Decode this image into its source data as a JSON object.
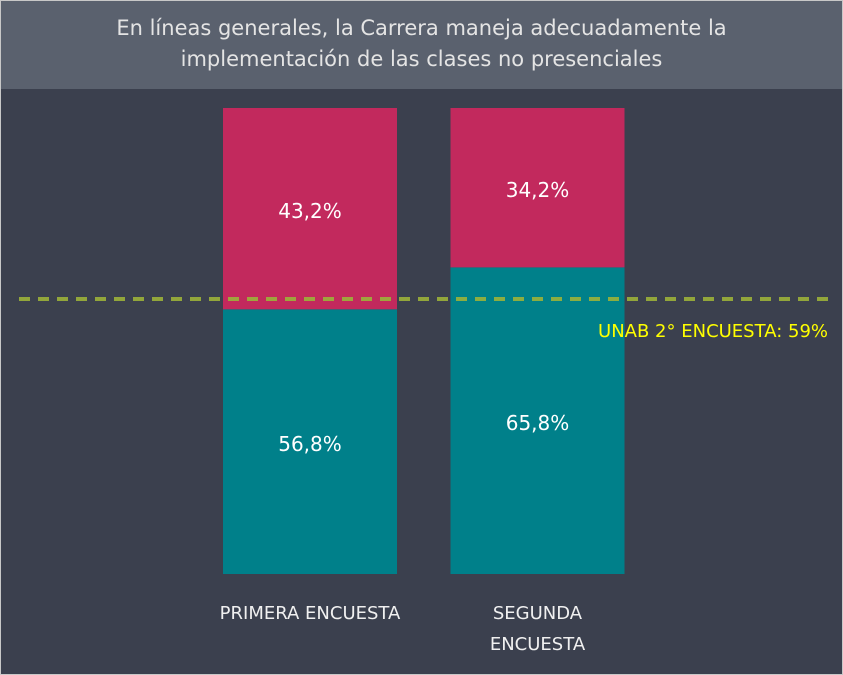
{
  "chart_data": {
    "type": "bar",
    "stacked": true,
    "title": "En líneas generales, la Carrera maneja adecuadamente la implementación de las clases no presenciales",
    "categories": [
      "PRIMERA ENCUESTA",
      "SEGUNDA ENCUESTA"
    ],
    "series": [
      {
        "color": "#00808a",
        "values": [
          56.8,
          65.8
        ],
        "value_labels": [
          "56,8%",
          "65,8%"
        ]
      },
      {
        "color": "#c2295d",
        "values": [
          43.2,
          34.2
        ],
        "value_labels": [
          "43,2%",
          "34,2%"
        ]
      }
    ],
    "ylim": [
      0,
      100
    ],
    "reference_line": {
      "value": 59,
      "label": "UNAB 2° ENCUESTA: 59%",
      "color": "#9cb23a",
      "label_color": "#ffff00"
    }
  }
}
